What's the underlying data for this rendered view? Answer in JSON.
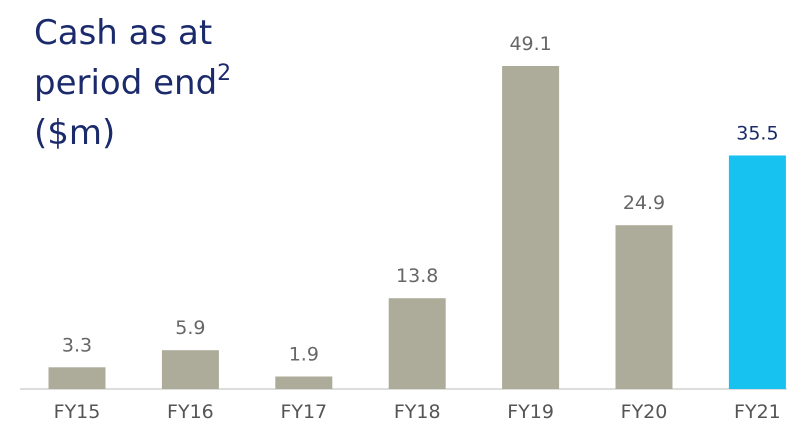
{
  "chart_data": {
    "type": "bar",
    "title_lines": [
      "Cash as at",
      "period end",
      "($m)"
    ],
    "title_note": "2",
    "categories": [
      "FY15",
      "FY16",
      "FY17",
      "FY18",
      "FY19",
      "FY20",
      "FY21"
    ],
    "values": [
      3.3,
      5.9,
      1.9,
      13.8,
      49.1,
      24.9,
      35.5
    ],
    "colors": [
      "#adac9b",
      "#adac9b",
      "#adac9b",
      "#adac9b",
      "#adac9b",
      "#adac9b",
      "#17c1f0"
    ],
    "label_colors": [
      "#666666",
      "#666666",
      "#666666",
      "#666666",
      "#666666",
      "#666666",
      "#1b2a6b"
    ]
  }
}
